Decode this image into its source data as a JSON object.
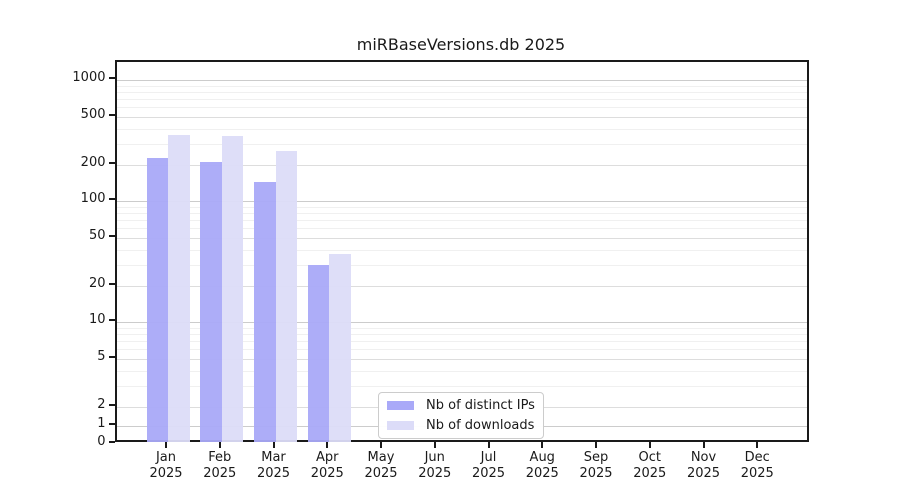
{
  "title": "miRBaseVersions.db 2025",
  "chart_data": {
    "type": "bar",
    "title": "miRBaseVersions.db 2025",
    "categories": [
      "Jan 2025",
      "Feb 2025",
      "Mar 2025",
      "Apr 2025",
      "May 2025",
      "Jun 2025",
      "Jul 2025",
      "Aug 2025",
      "Sep 2025",
      "Oct 2025",
      "Nov 2025",
      "Dec 2025"
    ],
    "series": [
      {
        "name": "Nb of distinct IPs",
        "color": "#a9a9f8",
        "values": [
          230,
          210,
          145,
          30,
          0,
          0,
          0,
          0,
          0,
          0,
          0,
          0
        ]
      },
      {
        "name": "Nb of downloads",
        "color": "#dcdcf8",
        "values": [
          355,
          350,
          260,
          37,
          0,
          0,
          0,
          0,
          0,
          0,
          0,
          0
        ]
      }
    ],
    "yscale": "log (linear below 2, log above 2)",
    "yticks": [
      0,
      1,
      2,
      5,
      10,
      20,
      50,
      100,
      200,
      500,
      1000
    ],
    "ylim": [
      0,
      1420
    ],
    "grid": true,
    "legend_position": "lower center inside plot"
  },
  "x_axis": {
    "months": [
      "Jan",
      "Feb",
      "Mar",
      "Apr",
      "May",
      "Jun",
      "Jul",
      "Aug",
      "Sep",
      "Oct",
      "Nov",
      "Dec"
    ],
    "year_label": "2025"
  },
  "y_axis": {
    "tick_labels": [
      "1000",
      "500",
      "200",
      "100",
      "50",
      "20",
      "10",
      "5",
      "2",
      "1",
      "0"
    ]
  },
  "legend": {
    "items": [
      {
        "label": "Nb of distinct IPs",
        "color": "#a9a9f8"
      },
      {
        "label": "Nb of downloads",
        "color": "#dcdcf8"
      }
    ]
  },
  "colors": {
    "major_grid": "#cccccc",
    "labeled_grid": "#dddddd",
    "minor_grid": "#f0f0f0",
    "spine": "#1a1a1a",
    "text": "#1a1a1a",
    "background": "#ffffff"
  }
}
